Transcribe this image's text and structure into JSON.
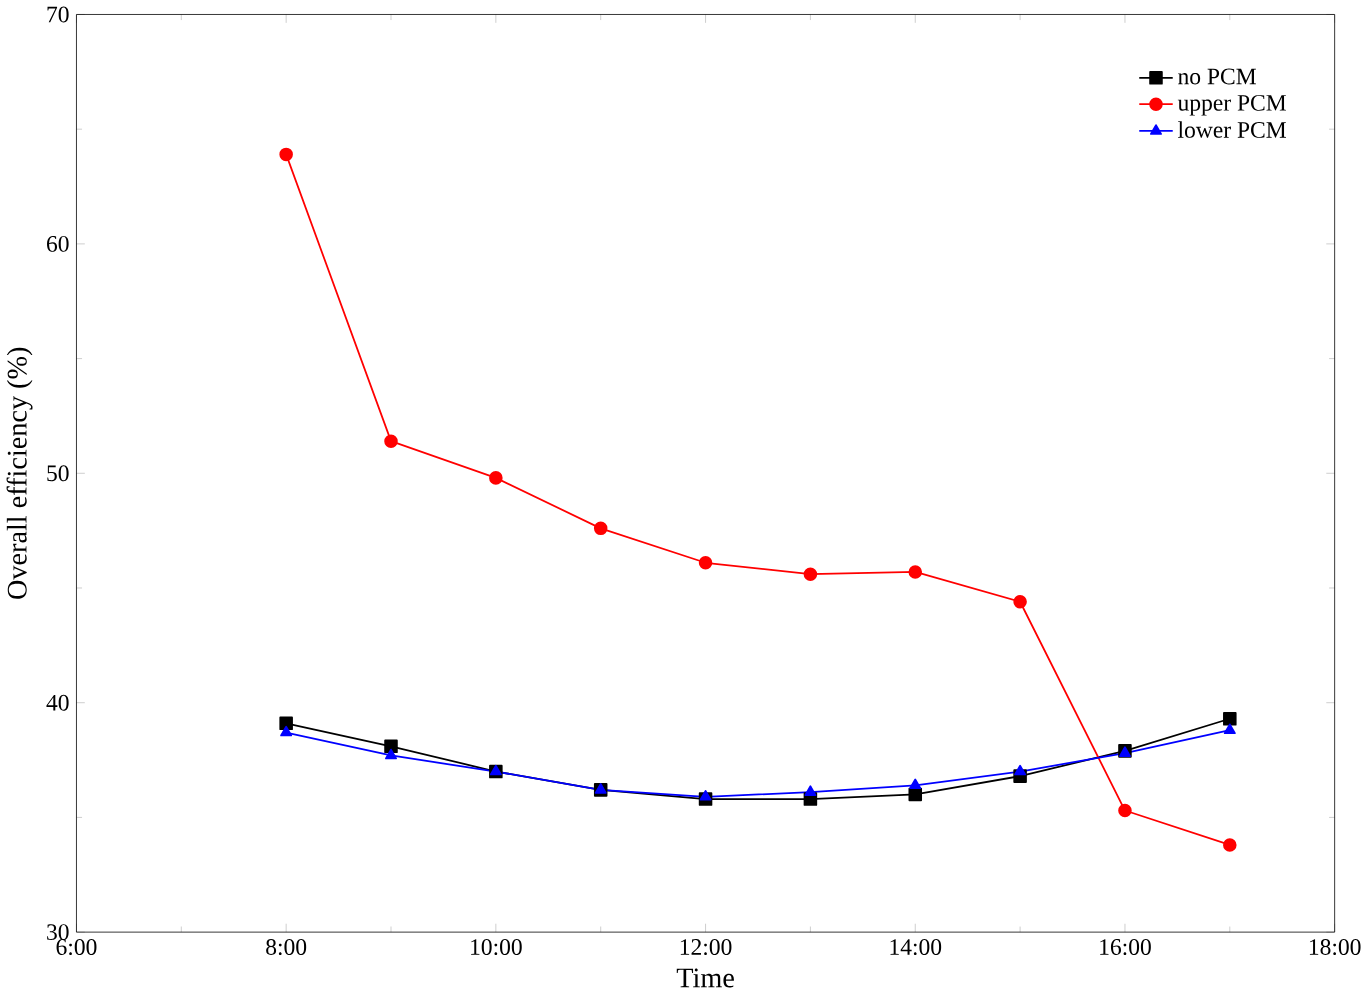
{
  "chart_data": {
    "type": "line",
    "xlabel": "Time",
    "ylabel": "Overall efficiency (%)",
    "x": [
      8,
      9,
      10,
      11,
      12,
      13,
      14,
      15,
      16,
      17
    ],
    "series": [
      {
        "name": "no PCM",
        "color": "#000000",
        "marker": "square",
        "values": [
          39.1,
          38.1,
          37.0,
          36.2,
          35.8,
          35.8,
          36.0,
          36.8,
          37.9,
          39.3
        ]
      },
      {
        "name": "upper PCM",
        "color": "#ff0000",
        "marker": "circle",
        "values": [
          63.9,
          51.4,
          49.8,
          47.6,
          46.1,
          45.6,
          45.7,
          44.4,
          35.3,
          33.8
        ]
      },
      {
        "name": "lower PCM",
        "color": "#0000ff",
        "marker": "triangle",
        "values": [
          38.7,
          37.7,
          37.0,
          36.2,
          35.9,
          36.1,
          36.4,
          37.0,
          37.8,
          38.8
        ]
      }
    ],
    "xlim": [
      6,
      18
    ],
    "ylim": [
      30,
      70
    ],
    "xticks": [
      {
        "value": 6,
        "label": "6:00"
      },
      {
        "value": 8,
        "label": "8:00"
      },
      {
        "value": 10,
        "label": "10:00"
      },
      {
        "value": 12,
        "label": "12:00"
      },
      {
        "value": 14,
        "label": "14:00"
      },
      {
        "value": 16,
        "label": "16:00"
      },
      {
        "value": 18,
        "label": "18:00"
      }
    ],
    "yticks": [
      30,
      40,
      50,
      60,
      70
    ],
    "legend": "top right",
    "grid": false,
    "line_style": "solid"
  }
}
